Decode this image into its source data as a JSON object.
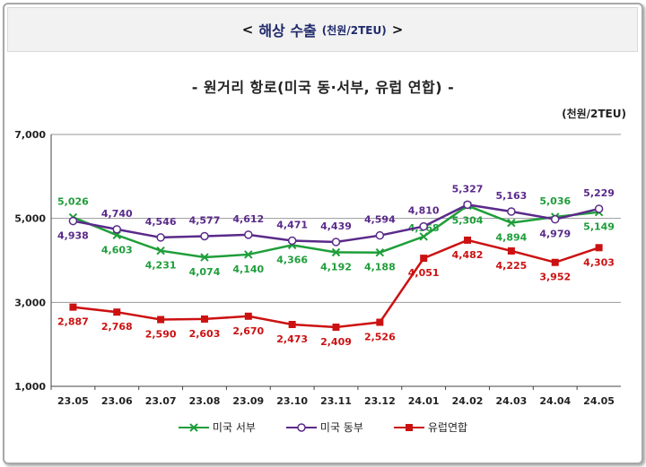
{
  "header": {
    "bracket_left": "<",
    "title": "해상 수출",
    "unit": "(천원/2TEU)",
    "bracket_right": ">"
  },
  "chart_data": {
    "type": "line",
    "title": "- 원거리 항로(미국 동·서부, 유럽 연합) -",
    "unit_label": "(천원/2TEU)",
    "categories": [
      "23.05",
      "23.06",
      "23.07",
      "23.08",
      "23.09",
      "23.10",
      "23.11",
      "23.12",
      "24.01",
      "24.02",
      "24.03",
      "24.04",
      "24.05"
    ],
    "ylim": [
      1000,
      7000
    ],
    "yticks": [
      "1,000",
      "3,000",
      "5,000",
      "7,000"
    ],
    "ytick_values": [
      1000,
      3000,
      5000,
      7000
    ],
    "grid": true,
    "legend_position": "bottom",
    "series": [
      {
        "name": "미국 서부",
        "color": "#1f9e3a",
        "marker": "x",
        "values": [
          5026,
          4603,
          4231,
          4074,
          4140,
          4366,
          4192,
          4188,
          4568,
          5304,
          4894,
          5036,
          5149
        ],
        "labels": [
          "5,026",
          "4,603",
          "4,231",
          "4,074",
          "4,140",
          "4,366",
          "4,192",
          "4,188",
          "4,568",
          "5,304",
          "4,894",
          "5,036",
          "5,149"
        ]
      },
      {
        "name": "미국 동부",
        "color": "#5a2a8a",
        "marker": "circle",
        "values": [
          4938,
          4740,
          4546,
          4577,
          4612,
          4471,
          4439,
          4594,
          4810,
          5327,
          5163,
          4979,
          5229
        ],
        "labels": [
          "4,938",
          "4,740",
          "4,546",
          "4,577",
          "4,612",
          "4,471",
          "4,439",
          "4,594",
          "4,810",
          "5,327",
          "5,163",
          "4,979",
          "5,229"
        ]
      },
      {
        "name": "유럽연합",
        "color": "#cc1111",
        "marker": "square",
        "values": [
          2887,
          2768,
          2590,
          2603,
          2670,
          2473,
          2409,
          2526,
          4051,
          4482,
          4225,
          3952,
          4303
        ],
        "labels": [
          "2,887",
          "2,768",
          "2,590",
          "2,603",
          "2,670",
          "2,473",
          "2,409",
          "2,526",
          "4,051",
          "4,482",
          "4,225",
          "3,952",
          "4,303"
        ]
      }
    ]
  }
}
